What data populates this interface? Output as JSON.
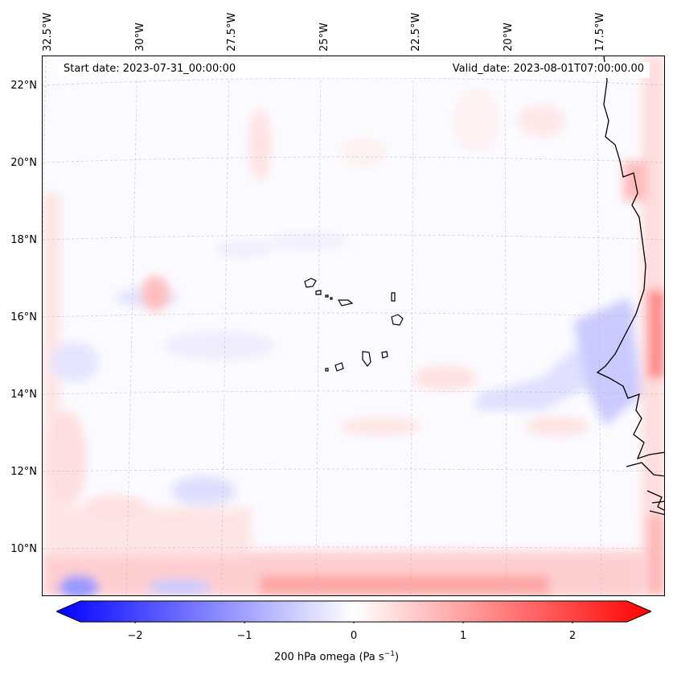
{
  "header": {
    "start_date": "Start date: 2023-07-31_00:00:00",
    "valid_date": "Valid_date: 2023-08-01T07:00:00.00"
  },
  "map": {
    "lon_labels": [
      {
        "text": "32.5°W",
        "lon": -32.5
      },
      {
        "text": "30°W",
        "lon": -30
      },
      {
        "text": "27.5°W",
        "lon": -27.5
      },
      {
        "text": "25°W",
        "lon": -25
      },
      {
        "text": "22.5°W",
        "lon": -22.5
      },
      {
        "text": "20°W",
        "lon": -20
      },
      {
        "text": "17.5°W",
        "lon": -17.5
      }
    ],
    "lat_labels": [
      {
        "text": "22°N",
        "lat": 22
      },
      {
        "text": "20°N",
        "lat": 20
      },
      {
        "text": "18°N",
        "lat": 18
      },
      {
        "text": "16°N",
        "lat": 16
      },
      {
        "text": "14°N",
        "lat": 14
      },
      {
        "text": "12°N",
        "lat": 12
      },
      {
        "text": "10°N",
        "lat": 10
      }
    ],
    "field": "200 hPa omega",
    "colormap": "bwr"
  },
  "colorbar": {
    "ticks": [
      "−2",
      "−1",
      "0",
      "1",
      "2"
    ],
    "tick_values": [
      -2,
      -1,
      0,
      1,
      2
    ],
    "range": [
      -2.5,
      2.5
    ],
    "extend": "both",
    "label_main": "200 hPa omega (Pa s",
    "label_sup": "−1",
    "label_end": ")",
    "colors": {
      "negative": "#0000ff",
      "zero": "#ffffff",
      "positive": "#ff0000"
    }
  }
}
